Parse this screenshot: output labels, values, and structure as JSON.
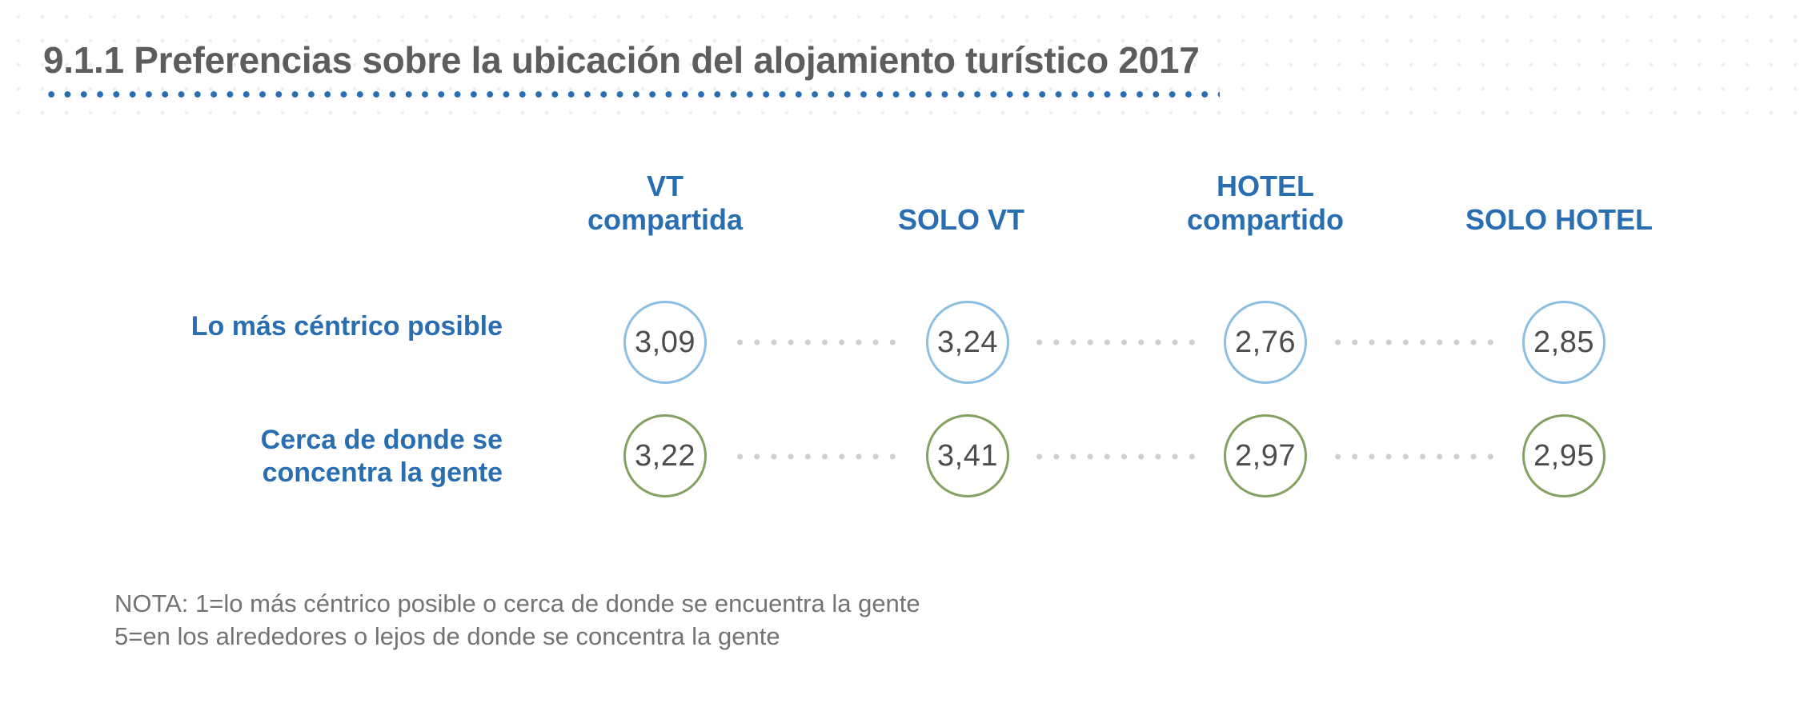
{
  "title": "9.1.1 Preferencias sobre la ubicación del alojamiento turístico 2017",
  "colors": {
    "accent_blue": "#2a6eb2",
    "row1_circle": "#8ebfe1",
    "row2_circle": "#84a163",
    "text_gray": "#5d5d5d"
  },
  "chart_data": {
    "type": "table",
    "columns": [
      {
        "line1": "VT",
        "line2": "compartida"
      },
      {
        "line1": "",
        "line2": "SOLO VT"
      },
      {
        "line1": "HOTEL",
        "line2": "compartido"
      },
      {
        "line1": "",
        "line2": "SOLO HOTEL"
      }
    ],
    "rows": [
      {
        "label_line1": "Lo más céntrico posible",
        "label_line2": "",
        "values": [
          "3,09",
          "3,24",
          "2,76",
          "2,85"
        ]
      },
      {
        "label_line1": "Cerca de donde se",
        "label_line2": "concentra la gente",
        "values": [
          "3,22",
          "3,41",
          "2,97",
          "2,95"
        ]
      }
    ]
  },
  "note": {
    "line1": "NOTA: 1=lo más céntrico posible o cerca de donde se encuentra la gente",
    "line2": "5=en los alrededores o lejos de donde se concentra la gente"
  }
}
